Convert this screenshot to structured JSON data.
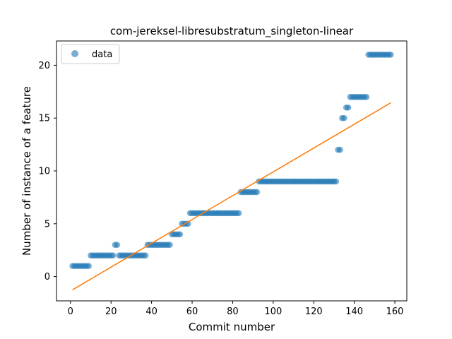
{
  "chart_data": {
    "type": "scatter",
    "title": "com-jereksel-libresubstratum_singleton-linear",
    "xlabel": "Commit number",
    "ylabel": "Number of instance of a feature",
    "xlim": [
      -6.9,
      165.9
    ],
    "ylim": [
      -2.3,
      22.3
    ],
    "xticks": [
      0,
      20,
      40,
      60,
      80,
      100,
      120,
      140,
      160
    ],
    "yticks": [
      0,
      5,
      10,
      15,
      20
    ],
    "legend_position": "top-left",
    "grid": false,
    "colors": {
      "scatter": "#1f77b4",
      "fit": "#ff7f0e"
    },
    "series": [
      {
        "name": "data",
        "kind": "points",
        "segments": [
          {
            "x_from": 1,
            "x_to": 9,
            "y": 1
          },
          {
            "x_from": 10,
            "x_to": 21,
            "y": 2
          },
          {
            "x_from": 22,
            "x_to": 23,
            "y": 3
          },
          {
            "x_from": 24,
            "x_to": 37,
            "y": 2
          },
          {
            "x_from": 38,
            "x_to": 49,
            "y": 3
          },
          {
            "x_from": 50,
            "x_to": 54,
            "y": 4
          },
          {
            "x_from": 55,
            "x_to": 58,
            "y": 5
          },
          {
            "x_from": 59,
            "x_to": 83,
            "y": 6
          },
          {
            "x_from": 84,
            "x_to": 92,
            "y": 8
          },
          {
            "x_from": 93,
            "x_to": 131,
            "y": 9
          },
          {
            "x_from": 132,
            "x_to": 133,
            "y": 12
          },
          {
            "x_from": 134,
            "x_to": 135,
            "y": 15
          },
          {
            "x_from": 136,
            "x_to": 137,
            "y": 16
          },
          {
            "x_from": 138,
            "x_to": 146,
            "y": 17
          },
          {
            "x_from": 147,
            "x_to": 158,
            "y": 21
          }
        ]
      },
      {
        "name": "",
        "kind": "line",
        "x": [
          1,
          158
        ],
        "y": [
          -1.25,
          16.45
        ]
      }
    ]
  }
}
